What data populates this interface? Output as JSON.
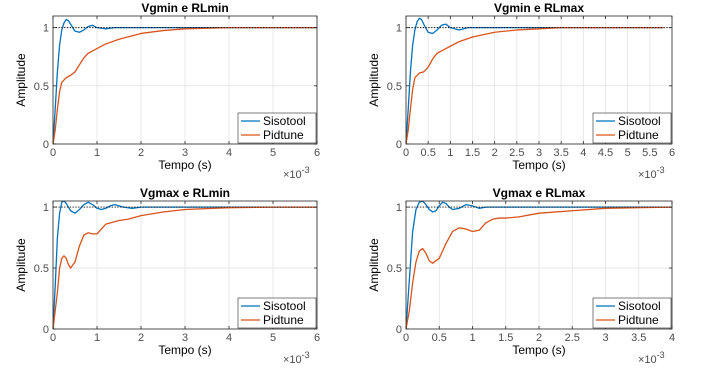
{
  "figure": {
    "series_colors": {
      "Sisotool": "#0072BD",
      "Pidtune": "#D95319"
    },
    "reference_color": "#000000"
  },
  "chart_data": [
    {
      "type": "line",
      "title": "Vgmin e RLmin",
      "xlabel": "Tempo (s)",
      "ylabel": "Amplitude",
      "x_exponent": "-3",
      "xlim": [
        0,
        6
      ],
      "ylim": [
        0,
        1.1
      ],
      "xticks": [
        0,
        1,
        2,
        3,
        4,
        5,
        6
      ],
      "xtick_labels": [
        "0",
        "1",
        "2",
        "3",
        "4",
        "5",
        "6"
      ],
      "yticks": [
        0,
        0.5,
        1
      ],
      "ytick_labels": [
        "0",
        "0.5",
        "1"
      ],
      "grid": true,
      "legend": "bottom-right",
      "reference_line": 1,
      "series": [
        {
          "name": "Sisotool",
          "x": [
            0,
            0.05,
            0.1,
            0.15,
            0.2,
            0.25,
            0.3,
            0.35,
            0.4,
            0.5,
            0.6,
            0.7,
            0.8,
            0.9,
            1.0,
            1.2,
            1.4,
            1.6,
            1.8,
            2.0,
            3.0,
            6.0
          ],
          "values": [
            0,
            0.3,
            0.62,
            0.85,
            0.98,
            1.04,
            1.07,
            1.06,
            1.03,
            0.97,
            0.96,
            0.98,
            1.01,
            1.02,
            1.0,
            0.99,
            1.0,
            1.0,
            1.0,
            1.0,
            1.0,
            1.0
          ]
        },
        {
          "name": "Pidtune",
          "x": [
            0,
            0.05,
            0.1,
            0.15,
            0.2,
            0.3,
            0.4,
            0.5,
            0.6,
            0.7,
            0.8,
            0.9,
            1.0,
            1.2,
            1.5,
            2.0,
            2.5,
            3.0,
            3.5,
            4.0,
            5.0,
            6.0
          ],
          "values": [
            0,
            0.12,
            0.3,
            0.45,
            0.53,
            0.57,
            0.59,
            0.62,
            0.68,
            0.74,
            0.78,
            0.8,
            0.82,
            0.86,
            0.9,
            0.95,
            0.975,
            0.99,
            0.995,
            1.0,
            1.0,
            1.0
          ]
        }
      ]
    },
    {
      "type": "line",
      "title": "Vgmin e RLmax",
      "xlabel": "Tempo (s)",
      "ylabel": "Amplitude",
      "x_exponent": "-3",
      "xlim": [
        0,
        6
      ],
      "ylim": [
        0,
        1.1
      ],
      "xticks": [
        0,
        0.5,
        1,
        1.5,
        2,
        2.5,
        3,
        3.5,
        4,
        4.5,
        5,
        5.5,
        6
      ],
      "xtick_labels": [
        "0",
        "0.5",
        "1",
        "1.5",
        "2",
        "2.5",
        "3",
        "3.5",
        "4",
        "4.5",
        "5",
        "5.5",
        "6"
      ],
      "yticks": [
        0,
        0.5,
        1
      ],
      "ytick_labels": [
        "0",
        "0.5",
        "1"
      ],
      "grid": true,
      "legend": "bottom-right",
      "reference_line": 1,
      "series": [
        {
          "name": "Sisotool",
          "x": [
            0,
            0.05,
            0.1,
            0.15,
            0.2,
            0.25,
            0.3,
            0.35,
            0.4,
            0.5,
            0.6,
            0.7,
            0.8,
            0.9,
            1.0,
            1.2,
            1.4,
            1.6,
            2.0,
            3.0,
            5.8
          ],
          "values": [
            0,
            0.3,
            0.62,
            0.85,
            0.98,
            1.05,
            1.08,
            1.07,
            1.03,
            0.96,
            0.95,
            0.98,
            1.02,
            1.03,
            1.0,
            0.98,
            1.0,
            1.0,
            1.0,
            1.0,
            1.0
          ]
        },
        {
          "name": "Pidtune",
          "x": [
            0,
            0.05,
            0.1,
            0.15,
            0.2,
            0.3,
            0.4,
            0.5,
            0.6,
            0.7,
            0.8,
            0.9,
            1.0,
            1.2,
            1.5,
            2.0,
            2.5,
            3.0,
            3.5,
            4.0,
            5.0,
            5.8
          ],
          "values": [
            0,
            0.12,
            0.3,
            0.47,
            0.57,
            0.61,
            0.62,
            0.66,
            0.73,
            0.78,
            0.8,
            0.82,
            0.84,
            0.88,
            0.92,
            0.96,
            0.98,
            0.99,
            1.0,
            1.0,
            1.0,
            1.0
          ]
        }
      ]
    },
    {
      "type": "line",
      "title": "Vgmax e RLmin",
      "xlabel": "Tempo (s)",
      "ylabel": "Amplitude",
      "x_exponent": "-3",
      "xlim": [
        0,
        6
      ],
      "ylim": [
        0,
        1.05
      ],
      "xticks": [
        0,
        1,
        2,
        3,
        4,
        5,
        6
      ],
      "xtick_labels": [
        "0",
        "1",
        "2",
        "3",
        "4",
        "5",
        "6"
      ],
      "yticks": [
        0,
        0.5,
        1
      ],
      "ytick_labels": [
        "0",
        "0.5",
        "1"
      ],
      "grid": true,
      "legend": "bottom-right",
      "reference_line": 1,
      "series": [
        {
          "name": "Sisotool",
          "x": [
            0,
            0.05,
            0.1,
            0.15,
            0.2,
            0.25,
            0.3,
            0.4,
            0.5,
            0.6,
            0.7,
            0.8,
            0.9,
            1.0,
            1.1,
            1.2,
            1.3,
            1.4,
            1.5,
            1.6,
            1.8,
            2.0,
            2.5,
            3.0,
            6.0
          ],
          "values": [
            0,
            0.35,
            0.75,
            0.95,
            1.04,
            1.05,
            1.03,
            0.97,
            0.95,
            0.98,
            1.02,
            1.04,
            1.02,
            0.99,
            0.98,
            0.99,
            1.01,
            1.02,
            1.01,
            1.0,
            0.99,
            1.0,
            1.0,
            1.0,
            1.0
          ]
        },
        {
          "name": "Pidtune",
          "x": [
            0,
            0.1,
            0.15,
            0.2,
            0.25,
            0.3,
            0.35,
            0.4,
            0.5,
            0.6,
            0.7,
            0.8,
            0.9,
            1.0,
            1.1,
            1.2,
            1.4,
            1.5,
            1.7,
            2.0,
            2.5,
            3.0,
            4.0,
            5.0,
            6.0
          ],
          "values": [
            0,
            0.3,
            0.5,
            0.58,
            0.6,
            0.58,
            0.53,
            0.5,
            0.55,
            0.68,
            0.77,
            0.79,
            0.78,
            0.78,
            0.82,
            0.86,
            0.88,
            0.89,
            0.9,
            0.93,
            0.96,
            0.98,
            0.995,
            1.0,
            1.0
          ]
        }
      ]
    },
    {
      "type": "line",
      "title": "Vgmax e RLmax",
      "xlabel": "Tempo (s)",
      "ylabel": "Amplitude",
      "x_exponent": "-3",
      "xlim": [
        0,
        4
      ],
      "ylim": [
        0,
        1.05
      ],
      "xticks": [
        0,
        0.5,
        1,
        1.5,
        2,
        2.5,
        3,
        3.5,
        4
      ],
      "xtick_labels": [
        "0",
        "0.5",
        "1",
        "1.5",
        "2",
        "2.5",
        "3",
        "3.5",
        "4"
      ],
      "yticks": [
        0,
        0.5,
        1
      ],
      "ytick_labels": [
        "0",
        "0.5",
        "1"
      ],
      "grid": true,
      "legend": "bottom-right",
      "reference_line": 1,
      "series": [
        {
          "name": "Sisotool",
          "x": [
            0,
            0.05,
            0.1,
            0.15,
            0.2,
            0.25,
            0.3,
            0.35,
            0.4,
            0.45,
            0.5,
            0.55,
            0.6,
            0.65,
            0.7,
            0.8,
            0.9,
            1.0,
            1.1,
            1.2,
            1.4,
            1.6,
            2.0,
            3.0,
            4.0
          ],
          "values": [
            0,
            0.4,
            0.8,
            0.98,
            1.04,
            1.05,
            1.02,
            0.98,
            0.96,
            0.97,
            1.01,
            1.04,
            1.03,
            1.0,
            0.98,
            0.99,
            1.02,
            1.01,
            0.99,
            1.0,
            1.0,
            1.0,
            1.0,
            1.0,
            1.0
          ]
        },
        {
          "name": "Pidtune",
          "x": [
            0,
            0.05,
            0.1,
            0.15,
            0.2,
            0.25,
            0.3,
            0.35,
            0.4,
            0.5,
            0.6,
            0.7,
            0.8,
            0.9,
            1.0,
            1.1,
            1.2,
            1.3,
            1.4,
            1.5,
            1.7,
            2.0,
            2.5,
            3.0,
            4.0
          ],
          "values": [
            0,
            0.15,
            0.38,
            0.55,
            0.64,
            0.66,
            0.62,
            0.56,
            0.54,
            0.58,
            0.7,
            0.8,
            0.83,
            0.82,
            0.8,
            0.81,
            0.87,
            0.9,
            0.91,
            0.91,
            0.92,
            0.95,
            0.97,
            0.99,
            1.0
          ]
        }
      ]
    }
  ]
}
